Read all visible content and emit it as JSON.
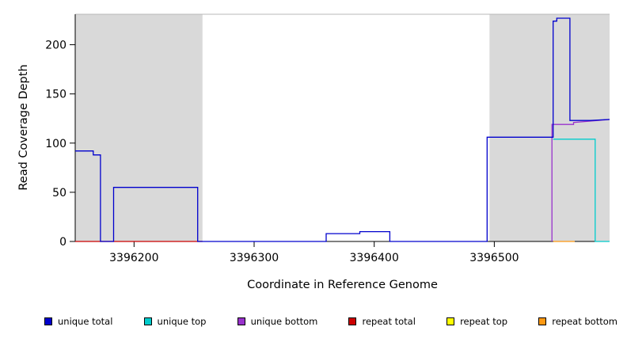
{
  "chart_data": {
    "type": "line",
    "title": "",
    "xlabel": "Coordinate in Reference Genome",
    "ylabel": "Read Coverage Depth",
    "xlim": [
      3396151,
      3396596
    ],
    "ylim": [
      0,
      231
    ],
    "xticks": [
      3396200,
      3396300,
      3396400,
      3396500
    ],
    "yticks": [
      0,
      50,
      100,
      150,
      200
    ],
    "grid": false,
    "plot_border_color": "#b8b8b8",
    "axis_color": "#000000",
    "shaded_regions": [
      {
        "x0": 3396151,
        "x1": 3396257,
        "color": "#d9d9d9"
      },
      {
        "x0": 3396496,
        "x1": 3396596,
        "color": "#d9d9d9"
      }
    ],
    "series": [
      {
        "name": "repeat total",
        "color": "#cc0000",
        "points": [
          [
            3396151,
            0
          ],
          [
            3396257,
            0
          ]
        ]
      },
      {
        "name": "repeat top",
        "color": "#ffff00",
        "points": []
      },
      {
        "name": "repeat bottom",
        "color": "#ff9913",
        "points": [
          [
            3396549,
            0
          ],
          [
            3396567,
            0
          ]
        ]
      },
      {
        "name": "unique top",
        "color": "#00cccc",
        "points": [
          [
            3396549,
            104
          ],
          [
            3396584,
            104
          ],
          [
            3396584,
            0
          ],
          [
            3396596,
            0
          ]
        ]
      },
      {
        "name": "unique bottom",
        "color": "#9932cc",
        "points": [
          [
            3396548,
            0
          ],
          [
            3396548,
            119
          ],
          [
            3396566,
            119
          ],
          [
            3396566,
            121
          ],
          [
            3396577,
            122
          ],
          [
            3396596,
            124
          ]
        ]
      },
      {
        "name": "unique total",
        "color": "#0000cd",
        "points": [
          [
            3396151,
            92
          ],
          [
            3396166,
            92
          ],
          [
            3396166,
            88
          ],
          [
            3396172,
            88
          ],
          [
            3396172,
            0
          ],
          [
            3396183,
            0
          ],
          [
            3396183,
            55
          ],
          [
            3396253,
            55
          ],
          [
            3396253,
            0
          ],
          [
            3396360,
            0
          ],
          [
            3396360,
            8
          ],
          [
            3396388,
            8
          ],
          [
            3396388,
            10
          ],
          [
            3396413,
            10
          ],
          [
            3396413,
            0
          ],
          [
            3396494,
            0
          ],
          [
            3396494,
            106
          ],
          [
            3396549,
            106
          ],
          [
            3396549,
            224
          ],
          [
            3396552,
            224
          ],
          [
            3396552,
            227
          ],
          [
            3396563,
            227
          ],
          [
            3396563,
            123
          ],
          [
            3396580,
            123
          ],
          [
            3396596,
            124
          ]
        ]
      }
    ],
    "legend": [
      {
        "label": "unique total",
        "color": "#0000cd"
      },
      {
        "label": "unique top",
        "color": "#00cccc"
      },
      {
        "label": "unique bottom",
        "color": "#9932cc"
      },
      {
        "label": "repeat total",
        "color": "#cc0000"
      },
      {
        "label": "repeat top",
        "color": "#ffff00"
      },
      {
        "label": "repeat bottom",
        "color": "#ff9913"
      }
    ]
  }
}
